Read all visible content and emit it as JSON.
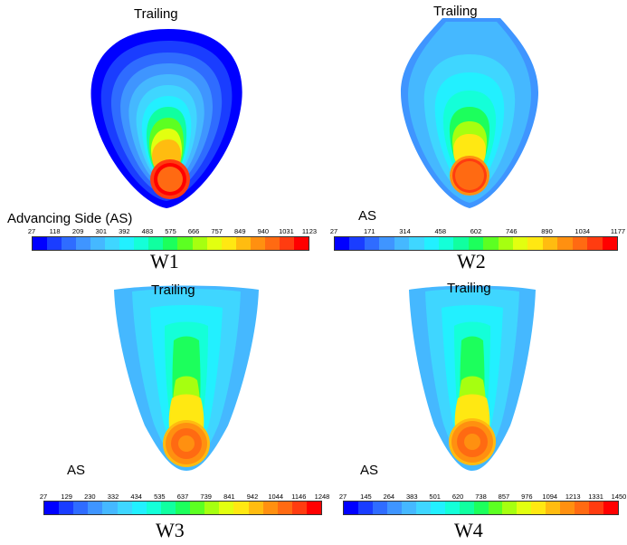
{
  "palette": [
    "#0000ff",
    "#1a3dff",
    "#2f6cff",
    "#3f95ff",
    "#45b8ff",
    "#3fd6ff",
    "#22f0ff",
    "#14ffd8",
    "#10ffa0",
    "#1cff5c",
    "#5cff22",
    "#a6ff10",
    "#e2ff10",
    "#ffe812",
    "#ffbc10",
    "#ff9010",
    "#ff6a12",
    "#ff3c10",
    "#ff0000"
  ],
  "panels": [
    {
      "id": "w1",
      "trailing_label": "Trailing",
      "side_label": "Advancing Side (AS)",
      "caption": "W1",
      "scale_ticks": [
        "27",
        "118",
        "209",
        "301",
        "392",
        "483",
        "575",
        "666",
        "757",
        "849",
        "940",
        "1031",
        "1123"
      ]
    },
    {
      "id": "w2",
      "trailing_label": "Trailing",
      "side_label": "AS",
      "caption": "W2",
      "scale_ticks": [
        "27",
        "171",
        "314",
        "458",
        "602",
        "746",
        "890",
        "1034",
        "1177"
      ]
    },
    {
      "id": "w3",
      "trailing_label": "Trailing",
      "side_label": "AS",
      "caption": "W3",
      "scale_ticks": [
        "27",
        "129",
        "230",
        "332",
        "434",
        "535",
        "637",
        "739",
        "841",
        "942",
        "1044",
        "1146",
        "1248"
      ]
    },
    {
      "id": "w4",
      "trailing_label": "Trailing",
      "side_label": "AS",
      "caption": "W4",
      "scale_ticks": [
        "27",
        "145",
        "264",
        "383",
        "501",
        "620",
        "738",
        "857",
        "976",
        "1094",
        "1213",
        "1331",
        "1450"
      ]
    }
  ]
}
